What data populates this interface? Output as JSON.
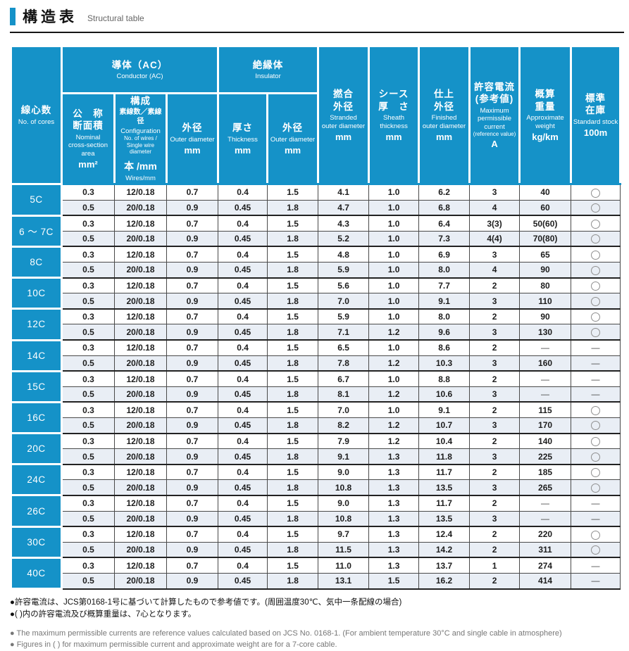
{
  "colors": {
    "accent_blue": "#1592c8",
    "row_alt": "#e9eef5"
  },
  "title": {
    "ja": "構造表",
    "en": "Structural table"
  },
  "table": {
    "header": {
      "cores": {
        "ja": "線心数",
        "en": "No. of cores"
      },
      "conductor": {
        "ja": "導体（AC）",
        "en": "Conductor (AC)"
      },
      "insulator": {
        "ja": "絶縁体",
        "en": "Insulator"
      },
      "nominal": {
        "ja": "公　称\n断面積",
        "en": "Nominal\ncross-section\narea",
        "unit": "mm²"
      },
      "config": {
        "ja": "構成",
        "ja_sub": "素線数／素線径",
        "en": "Configuration",
        "en_sub": "No. of wires /\nSingle wire diameter",
        "unit_ja": "本 /mm",
        "unit_en": "Wires/mm"
      },
      "outer": {
        "ja": "外径",
        "en": "Outer diameter",
        "unit": "mm"
      },
      "thickness": {
        "ja": "厚さ",
        "en": "Thickness",
        "unit": "mm"
      },
      "ins_outer": {
        "ja": "外径",
        "en": "Outer diameter",
        "unit": "mm"
      },
      "stranded": {
        "ja": "撚合\n外径",
        "en": "Stranded\nouter diameter",
        "unit": "mm"
      },
      "sheath": {
        "ja": "シース\n厚　さ",
        "en": "Sheath\nthickness",
        "unit": "mm"
      },
      "finished": {
        "ja": "仕上\n外径",
        "en": "Finished\nouter diameter",
        "unit": "mm"
      },
      "current": {
        "ja": "許容電流\n(参考値)",
        "en": "Maximum\npermissible\ncurrent",
        "en_sub": "(reference value)",
        "unit": "A"
      },
      "weight": {
        "ja": "概算\n重量",
        "en": "Approximate\nweight",
        "unit": "kg/km"
      },
      "stock": {
        "ja": "標準\n在庫",
        "en": "Standard stock",
        "unit": "100m"
      }
    },
    "groups": [
      {
        "cores": "5C",
        "rows": [
          [
            "0.3",
            "12/0.18",
            "0.7",
            "0.4",
            "1.5",
            "4.1",
            "1.0",
            "6.2",
            "3",
            "40",
            "○"
          ],
          [
            "0.5",
            "20/0.18",
            "0.9",
            "0.45",
            "1.8",
            "4.7",
            "1.0",
            "6.8",
            "4",
            "60",
            "○"
          ]
        ]
      },
      {
        "cores": "6 〜 7C",
        "rows": [
          [
            "0.3",
            "12/0.18",
            "0.7",
            "0.4",
            "1.5",
            "4.3",
            "1.0",
            "6.4",
            "3(3)",
            "50(60)",
            "○"
          ],
          [
            "0.5",
            "20/0.18",
            "0.9",
            "0.45",
            "1.8",
            "5.2",
            "1.0",
            "7.3",
            "4(4)",
            "70(80)",
            "○"
          ]
        ]
      },
      {
        "cores": "8C",
        "rows": [
          [
            "0.3",
            "12/0.18",
            "0.7",
            "0.4",
            "1.5",
            "4.8",
            "1.0",
            "6.9",
            "3",
            "65",
            "○"
          ],
          [
            "0.5",
            "20/0.18",
            "0.9",
            "0.45",
            "1.8",
            "5.9",
            "1.0",
            "8.0",
            "4",
            "90",
            "○"
          ]
        ]
      },
      {
        "cores": "10C",
        "rows": [
          [
            "0.3",
            "12/0.18",
            "0.7",
            "0.4",
            "1.5",
            "5.6",
            "1.0",
            "7.7",
            "2",
            "80",
            "○"
          ],
          [
            "0.5",
            "20/0.18",
            "0.9",
            "0.45",
            "1.8",
            "7.0",
            "1.0",
            "9.1",
            "3",
            "110",
            "○"
          ]
        ]
      },
      {
        "cores": "12C",
        "rows": [
          [
            "0.3",
            "12/0.18",
            "0.7",
            "0.4",
            "1.5",
            "5.9",
            "1.0",
            "8.0",
            "2",
            "90",
            "○"
          ],
          [
            "0.5",
            "20/0.18",
            "0.9",
            "0.45",
            "1.8",
            "7.1",
            "1.2",
            "9.6",
            "3",
            "130",
            "○"
          ]
        ]
      },
      {
        "cores": "14C",
        "rows": [
          [
            "0.3",
            "12/0.18",
            "0.7",
            "0.4",
            "1.5",
            "6.5",
            "1.0",
            "8.6",
            "2",
            "―",
            "―"
          ],
          [
            "0.5",
            "20/0.18",
            "0.9",
            "0.45",
            "1.8",
            "7.8",
            "1.2",
            "10.3",
            "3",
            "160",
            "―"
          ]
        ]
      },
      {
        "cores": "15C",
        "rows": [
          [
            "0.3",
            "12/0.18",
            "0.7",
            "0.4",
            "1.5",
            "6.7",
            "1.0",
            "8.8",
            "2",
            "―",
            "―"
          ],
          [
            "0.5",
            "20/0.18",
            "0.9",
            "0.45",
            "1.8",
            "8.1",
            "1.2",
            "10.6",
            "3",
            "―",
            "―"
          ]
        ]
      },
      {
        "cores": "16C",
        "rows": [
          [
            "0.3",
            "12/0.18",
            "0.7",
            "0.4",
            "1.5",
            "7.0",
            "1.0",
            "9.1",
            "2",
            "115",
            "○"
          ],
          [
            "0.5",
            "20/0.18",
            "0.9",
            "0.45",
            "1.8",
            "8.2",
            "1.2",
            "10.7",
            "3",
            "170",
            "○"
          ]
        ]
      },
      {
        "cores": "20C",
        "rows": [
          [
            "0.3",
            "12/0.18",
            "0.7",
            "0.4",
            "1.5",
            "7.9",
            "1.2",
            "10.4",
            "2",
            "140",
            "○"
          ],
          [
            "0.5",
            "20/0.18",
            "0.9",
            "0.45",
            "1.8",
            "9.1",
            "1.3",
            "11.8",
            "3",
            "225",
            "○"
          ]
        ]
      },
      {
        "cores": "24C",
        "rows": [
          [
            "0.3",
            "12/0.18",
            "0.7",
            "0.4",
            "1.5",
            "9.0",
            "1.3",
            "11.7",
            "2",
            "185",
            "○"
          ],
          [
            "0.5",
            "20/0.18",
            "0.9",
            "0.45",
            "1.8",
            "10.8",
            "1.3",
            "13.5",
            "3",
            "265",
            "○"
          ]
        ]
      },
      {
        "cores": "26C",
        "rows": [
          [
            "0.3",
            "12/0.18",
            "0.7",
            "0.4",
            "1.5",
            "9.0",
            "1.3",
            "11.7",
            "2",
            "―",
            "―"
          ],
          [
            "0.5",
            "20/0.18",
            "0.9",
            "0.45",
            "1.8",
            "10.8",
            "1.3",
            "13.5",
            "3",
            "―",
            "―"
          ]
        ]
      },
      {
        "cores": "30C",
        "rows": [
          [
            "0.3",
            "12/0.18",
            "0.7",
            "0.4",
            "1.5",
            "9.7",
            "1.3",
            "12.4",
            "2",
            "220",
            "○"
          ],
          [
            "0.5",
            "20/0.18",
            "0.9",
            "0.45",
            "1.8",
            "11.5",
            "1.3",
            "14.2",
            "2",
            "311",
            "○"
          ]
        ]
      },
      {
        "cores": "40C",
        "rows": [
          [
            "0.3",
            "12/0.18",
            "0.7",
            "0.4",
            "1.5",
            "11.0",
            "1.3",
            "13.7",
            "1",
            "274",
            "―"
          ],
          [
            "0.5",
            "20/0.18",
            "0.9",
            "0.45",
            "1.8",
            "13.1",
            "1.5",
            "16.2",
            "2",
            "414",
            "―"
          ]
        ]
      }
    ]
  },
  "footnotes": {
    "ja": [
      "●許容電流は、JCS第0168-1号に基づいて計算したもので参考値です。(周囲温度30℃、気中一条配線の場合)",
      "●( )内の許容電流及び概算重量は、7心となります。"
    ],
    "en": [
      "● The maximum permissible currents are reference values calculated based on JCS No. 0168-1. (For ambient temperature 30°C and single cable in atmosphere)",
      "● Figures in ( ) for maximum permissible current and approximate weight are for a 7-core cable."
    ]
  }
}
